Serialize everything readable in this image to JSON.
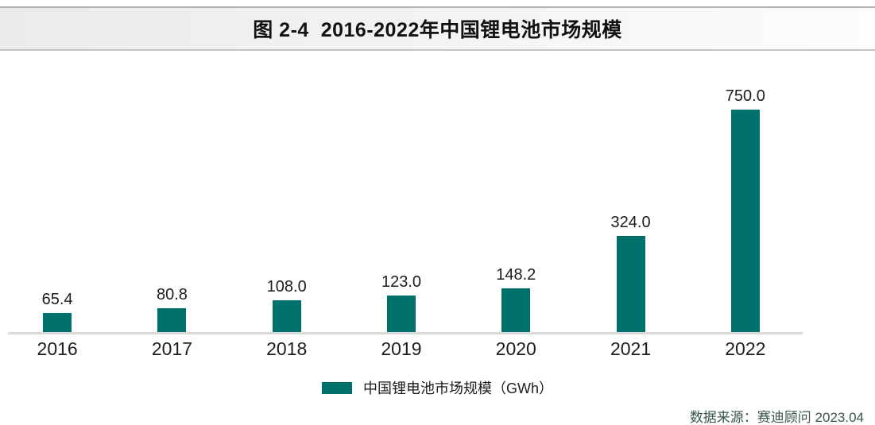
{
  "header": {
    "title": "图 2-4  2016-2022年中国锂电池市场规模"
  },
  "chart_data": {
    "type": "bar",
    "title": "图 2-4 2016-2022年中国锂电池市场规模",
    "categories": [
      "2016",
      "2017",
      "2018",
      "2019",
      "2020",
      "2021",
      "2022"
    ],
    "values": [
      65.4,
      80.8,
      108.0,
      123.0,
      148.2,
      324.0,
      750.0
    ],
    "value_labels": [
      "65.4",
      "80.8",
      "108.0",
      "123.0",
      "148.2",
      "324.0",
      "750.0"
    ],
    "xlabel": "",
    "ylabel": "GWh",
    "ylim": [
      0,
      750
    ],
    "grid": false,
    "y_axis_visible": false,
    "legend_position": "bottom-center",
    "bar_color": "#00716a",
    "axis_line_color": "#d9d9d9",
    "label_color": "#1c1c1c"
  },
  "legend": {
    "label": "中国锂电池市场规模（GWh）"
  },
  "footer": {
    "source": "数据来源：赛迪顾问 2023.04",
    "source_color": "#3a564f"
  }
}
